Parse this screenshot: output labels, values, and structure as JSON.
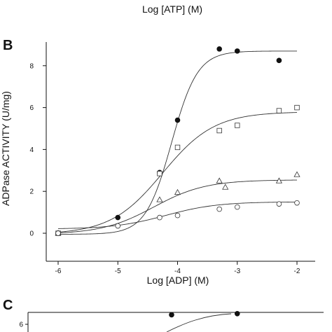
{
  "top_caption": "Log [ATP] (M)",
  "chart_data": [
    {
      "type": "scatter",
      "panel": "B",
      "xlabel": "Log [ADP] (M)",
      "ylabel": "ADPase ACTIVITY (U/mg)",
      "xlim": [
        -6.4,
        -1.8
      ],
      "ylim": [
        -0.9,
        9.1
      ],
      "x_ticks": [
        -6,
        -5,
        -4,
        -3,
        -2
      ],
      "y_ticks": [
        0,
        2,
        4,
        6,
        8
      ],
      "grid": false,
      "series": [
        {
          "marker": "filled-circle",
          "x": [
            -6,
            -5,
            -4.3,
            -4,
            -3.3,
            -3,
            -2.3
          ],
          "y": [
            0,
            0.75,
            2.9,
            5.4,
            8.8,
            8.7,
            8.25
          ],
          "fit": {
            "bottom": -0.05,
            "top": 8.7,
            "logEC50": -4.1,
            "hill": 2.0
          }
        },
        {
          "marker": "open-square",
          "x": [
            -6,
            -4.3,
            -4,
            -3.3,
            -3,
            -2.3,
            -2
          ],
          "y": [
            0,
            2.85,
            4.1,
            4.9,
            5.15,
            5.85,
            6.0
          ],
          "fit": {
            "bottom": -0.05,
            "top": 5.8,
            "logEC50": -4.25,
            "hill": 1.0
          }
        },
        {
          "marker": "open-triangle",
          "x": [
            -6,
            -4.3,
            -4,
            -3.3,
            -3.2,
            -2.3,
            -2
          ],
          "y": [
            0,
            1.6,
            1.95,
            2.5,
            2.2,
            2.5,
            2.8
          ],
          "fit": {
            "bottom": -0.05,
            "top": 2.55,
            "logEC50": -4.4,
            "hill": 1.0
          }
        },
        {
          "marker": "open-circle",
          "x": [
            -6,
            -5,
            -4.3,
            -4,
            -3.3,
            -3,
            -2.3,
            -2
          ],
          "y": [
            0,
            0.35,
            0.75,
            0.85,
            1.15,
            1.25,
            1.4,
            1.45
          ],
          "fit": {
            "bottom": 0.2,
            "top": 1.5,
            "logEC50": -4.2,
            "hill": 1.0
          }
        }
      ]
    },
    {
      "type": "scatter",
      "panel": "C",
      "y_ticks": [
        6
      ],
      "series": [
        {
          "marker": "filled-circle",
          "x": [
            -4.1,
            -3.0
          ],
          "y": [
            6.85,
            6.95
          ]
        }
      ]
    }
  ]
}
